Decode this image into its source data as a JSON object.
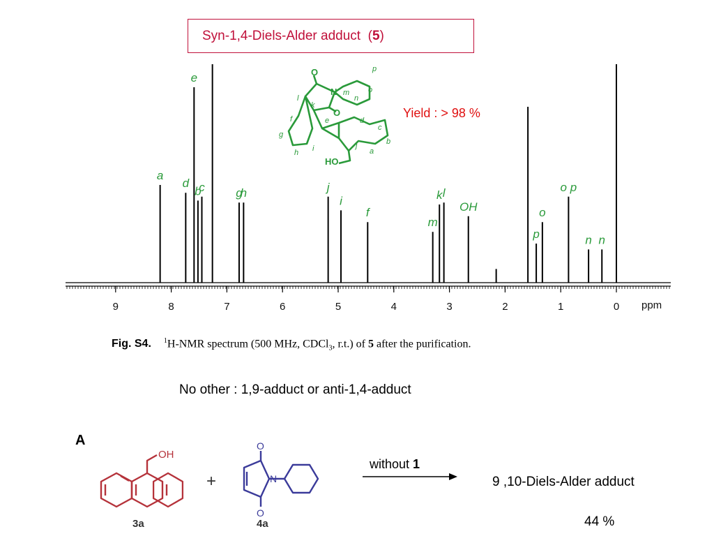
{
  "title": {
    "text": "Syn-1,4-Diels-Alder adduct  (",
    "compound": "5",
    "close": ")"
  },
  "yield_note": "Yield : > 98 %",
  "caption": {
    "fig_label": "Fig. S4.",
    "sup": "1",
    "text_a": "H-NMR spectrum (500 MHz, CDCl",
    "sub": "3",
    "text_b": ", r.t.) of ",
    "compound": "5",
    "text_c": " after the purification."
  },
  "note": "No other : 1,9-adduct or anti-1,4-adduct",
  "scheme": {
    "panel_label": "A",
    "reagent1": "3a",
    "reagent2": "4a",
    "plus": "+",
    "arrow_label": "without ",
    "arrow_label_bold": "1",
    "product": "9 ,10-Diels-Alder adduct",
    "product_yield": "44 %",
    "oh_label": "OH"
  },
  "colors": {
    "accent_red": "#c0103a",
    "spectrum_green": "#2a9a3a",
    "reagent_red": "#b5323a",
    "reagent_blue": "#3b3b9a"
  },
  "chart_data": {
    "type": "line",
    "spectrum": "1H-NMR",
    "xlabel": "ppm",
    "xlim": [
      9.9,
      -0.9
    ],
    "x_reversed": true,
    "x_ticks": [
      9,
      8,
      7,
      6,
      5,
      4,
      3,
      2,
      1,
      0
    ],
    "y_axis": false,
    "peaks": [
      {
        "label": "a",
        "ppm": 8.2,
        "height": 0.5
      },
      {
        "label": "d",
        "ppm": 7.74,
        "height": 0.46
      },
      {
        "label": "b",
        "ppm": 7.52,
        "height": 0.42
      },
      {
        "label": "c",
        "ppm": 7.45,
        "height": 0.44
      },
      {
        "label": "e",
        "ppm": 7.59,
        "height": 1.0
      },
      {
        "label": "",
        "ppm": 7.26,
        "height": 1.3
      },
      {
        "label": "g",
        "ppm": 6.78,
        "height": 0.41
      },
      {
        "label": "h",
        "ppm": 6.7,
        "height": 0.41
      },
      {
        "label": "j",
        "ppm": 5.18,
        "height": 0.44
      },
      {
        "label": "i",
        "ppm": 4.95,
        "height": 0.37
      },
      {
        "label": "f",
        "ppm": 4.47,
        "height": 0.31
      },
      {
        "label": "m",
        "ppm": 3.3,
        "height": 0.26
      },
      {
        "label": "k",
        "ppm": 3.18,
        "height": 0.4
      },
      {
        "label": "l",
        "ppm": 3.1,
        "height": 0.41
      },
      {
        "label": "OH",
        "ppm": 2.66,
        "height": 0.34
      },
      {
        "label": "",
        "ppm": 2.16,
        "height": 0.07
      },
      {
        "label": "",
        "ppm": 1.59,
        "height": 0.9
      },
      {
        "label": "p",
        "ppm": 1.44,
        "height": 0.2
      },
      {
        "label": "o",
        "ppm": 1.33,
        "height": 0.31
      },
      {
        "label": "o p",
        "ppm": 0.86,
        "height": 0.44
      },
      {
        "label": "n",
        "ppm": 0.5,
        "height": 0.17
      },
      {
        "label": "n",
        "ppm": 0.26,
        "height": 0.17
      },
      {
        "label": "",
        "ppm": 0.0,
        "height": 1.2
      }
    ]
  }
}
